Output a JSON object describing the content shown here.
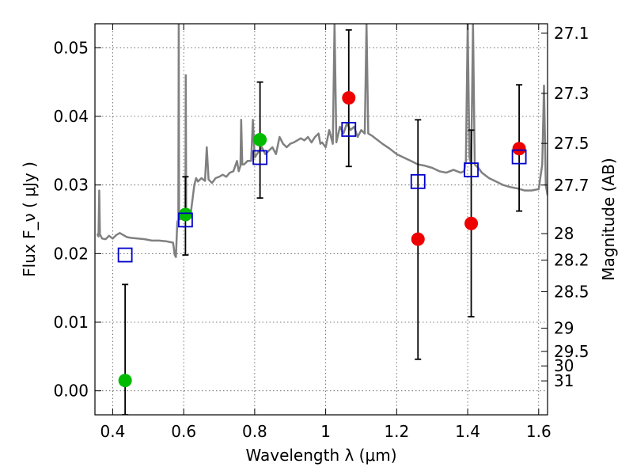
{
  "chart_data": {
    "type": "scatter",
    "xlabel": "Wavelength  λ (μm)",
    "ylabel_left": "Flux  F_ν  ( μJy )",
    "ylabel_right": "Magnitude (AB)",
    "xlim": [
      0.35,
      1.625
    ],
    "ylim": [
      -0.0035,
      0.0535
    ],
    "grid": true,
    "x_ticks": [
      0.4,
      0.6,
      0.8,
      1.0,
      1.2,
      1.4,
      1.6
    ],
    "x_tick_labels": [
      "0.4",
      "0.6",
      "0.8",
      "1",
      "1.2",
      "1.4",
      "1.6"
    ],
    "y_ticks": [
      0.0,
      0.01,
      0.02,
      0.03,
      0.04,
      0.05
    ],
    "y_tick_labels": [
      "0.00",
      "0.01",
      "0.02",
      "0.03",
      "0.04",
      "0.05"
    ],
    "right_ticks": [
      {
        "label": "27.1",
        "flux": 0.05212
      },
      {
        "label": "27.3",
        "flux": 0.04335
      },
      {
        "label": "27.5",
        "flux": 0.03606
      },
      {
        "label": "27.7",
        "flux": 0.02999
      },
      {
        "label": "28",
        "flux": 0.02291
      },
      {
        "label": "28.2",
        "flux": 0.01905
      },
      {
        "label": "28.5",
        "flux": 0.01445
      },
      {
        "label": "29",
        "flux": 0.00912
      },
      {
        "label": "29.5",
        "flux": 0.00575
      },
      {
        "label": "30",
        "flux": 0.00363
      },
      {
        "label": "31",
        "flux": 0.00145
      }
    ],
    "colors": {
      "spectrum": "#808080",
      "green_points": "#00bb00",
      "red_points": "#ee0000",
      "model_squares": "#0000cc",
      "errorbars": "#000000"
    },
    "series": [
      {
        "kind": "line",
        "points": [
          [
            0.355,
            0.0228
          ],
          [
            0.357,
            0.0228
          ],
          [
            0.36,
            0.0225
          ],
          [
            0.362,
            0.0292
          ],
          [
            0.364,
            0.0228
          ],
          [
            0.37,
            0.0222
          ],
          [
            0.38,
            0.0221
          ],
          [
            0.39,
            0.0226
          ],
          [
            0.4,
            0.0222
          ],
          [
            0.41,
            0.0227
          ],
          [
            0.42,
            0.023
          ],
          [
            0.43,
            0.0227
          ],
          [
            0.44,
            0.0224
          ],
          [
            0.45,
            0.0223
          ],
          [
            0.47,
            0.0222
          ],
          [
            0.49,
            0.0221
          ],
          [
            0.51,
            0.0219
          ],
          [
            0.53,
            0.0219
          ],
          [
            0.55,
            0.0218
          ],
          [
            0.57,
            0.0216
          ],
          [
            0.575,
            0.0198
          ],
          [
            0.578,
            0.0195
          ],
          [
            0.582,
            0.0246
          ],
          [
            0.585,
            0.025
          ],
          [
            0.586,
            0.0535
          ],
          [
            0.587,
            0.025
          ],
          [
            0.59,
            0.025
          ],
          [
            0.6,
            0.0254
          ],
          [
            0.605,
            0.0255
          ],
          [
            0.606,
            0.046
          ],
          [
            0.607,
            0.0258
          ],
          [
            0.61,
            0.026
          ],
          [
            0.62,
            0.0259
          ],
          [
            0.63,
            0.03
          ],
          [
            0.635,
            0.031
          ],
          [
            0.64,
            0.0305
          ],
          [
            0.65,
            0.031
          ],
          [
            0.66,
            0.0306
          ],
          [
            0.665,
            0.0355
          ],
          [
            0.67,
            0.0308
          ],
          [
            0.68,
            0.0303
          ],
          [
            0.69,
            0.031
          ],
          [
            0.7,
            0.0312
          ],
          [
            0.71,
            0.0315
          ],
          [
            0.72,
            0.0312
          ],
          [
            0.73,
            0.0318
          ],
          [
            0.74,
            0.032
          ],
          [
            0.75,
            0.0335
          ],
          [
            0.755,
            0.032
          ],
          [
            0.76,
            0.0328
          ],
          [
            0.762,
            0.0395
          ],
          [
            0.765,
            0.033
          ],
          [
            0.77,
            0.033
          ],
          [
            0.78,
            0.0335
          ],
          [
            0.79,
            0.0335
          ],
          [
            0.795,
            0.0395
          ],
          [
            0.8,
            0.034
          ],
          [
            0.81,
            0.0348
          ],
          [
            0.82,
            0.0355
          ],
          [
            0.83,
            0.0345
          ],
          [
            0.84,
            0.035
          ],
          [
            0.85,
            0.0355
          ],
          [
            0.86,
            0.0345
          ],
          [
            0.87,
            0.037
          ],
          [
            0.88,
            0.036
          ],
          [
            0.89,
            0.0355
          ],
          [
            0.9,
            0.036
          ],
          [
            0.91,
            0.0362
          ],
          [
            0.92,
            0.0365
          ],
          [
            0.93,
            0.0368
          ],
          [
            0.94,
            0.0365
          ],
          [
            0.95,
            0.037
          ],
          [
            0.96,
            0.0362
          ],
          [
            0.97,
            0.037
          ],
          [
            0.98,
            0.0375
          ],
          [
            0.985,
            0.036
          ],
          [
            0.99,
            0.0362
          ],
          [
            1.0,
            0.0355
          ],
          [
            1.01,
            0.038
          ],
          [
            1.02,
            0.036
          ],
          [
            1.025,
            0.0535
          ],
          [
            1.03,
            0.0362
          ],
          [
            1.04,
            0.0385
          ],
          [
            1.05,
            0.0375
          ],
          [
            1.06,
            0.039
          ],
          [
            1.07,
            0.038
          ],
          [
            1.08,
            0.0385
          ],
          [
            1.09,
            0.037
          ],
          [
            1.1,
            0.038
          ],
          [
            1.11,
            0.0375
          ],
          [
            1.115,
            0.0535
          ],
          [
            1.12,
            0.0375
          ],
          [
            1.13,
            0.0372
          ],
          [
            1.14,
            0.0368
          ],
          [
            1.16,
            0.036
          ],
          [
            1.18,
            0.0353
          ],
          [
            1.2,
            0.0345
          ],
          [
            1.22,
            0.034
          ],
          [
            1.24,
            0.0335
          ],
          [
            1.26,
            0.033
          ],
          [
            1.28,
            0.0328
          ],
          [
            1.3,
            0.0325
          ],
          [
            1.32,
            0.032
          ],
          [
            1.34,
            0.0318
          ],
          [
            1.36,
            0.0322
          ],
          [
            1.38,
            0.0318
          ],
          [
            1.39,
            0.032
          ],
          [
            1.395,
            0.0335
          ],
          [
            1.4,
            0.0535
          ],
          [
            1.405,
            0.034
          ],
          [
            1.41,
            0.033
          ],
          [
            1.415,
            0.0535
          ],
          [
            1.42,
            0.033
          ],
          [
            1.43,
            0.0325
          ],
          [
            1.44,
            0.0318
          ],
          [
            1.46,
            0.031
          ],
          [
            1.48,
            0.0305
          ],
          [
            1.5,
            0.03
          ],
          [
            1.52,
            0.0297
          ],
          [
            1.54,
            0.0295
          ],
          [
            1.56,
            0.0292
          ],
          [
            1.58,
            0.0292
          ],
          [
            1.6,
            0.0294
          ],
          [
            1.61,
            0.033
          ],
          [
            1.615,
            0.0445
          ],
          [
            1.62,
            0.03
          ],
          [
            1.625,
            0.0285
          ]
        ]
      },
      {
        "kind": "errorbars",
        "points": [
          {
            "x": 0.435,
            "low": -0.0035,
            "high": 0.0155
          },
          {
            "x": 0.605,
            "low": 0.0198,
            "high": 0.0312
          },
          {
            "x": 0.815,
            "low": 0.0281,
            "high": 0.045
          },
          {
            "x": 1.065,
            "low": 0.0327,
            "high": 0.0526
          },
          {
            "x": 1.26,
            "low": 0.0046,
            "high": 0.0395
          },
          {
            "x": 1.41,
            "low": 0.0108,
            "high": 0.038
          },
          {
            "x": 1.545,
            "low": 0.0262,
            "high": 0.0446
          }
        ]
      },
      {
        "kind": "circles-green",
        "points": [
          [
            0.435,
            0.0015
          ],
          [
            0.605,
            0.0257
          ],
          [
            0.815,
            0.0366
          ]
        ]
      },
      {
        "kind": "circles-red",
        "points": [
          [
            1.065,
            0.0427
          ],
          [
            1.26,
            0.0221
          ],
          [
            1.41,
            0.0244
          ],
          [
            1.545,
            0.0353
          ]
        ]
      },
      {
        "kind": "squares",
        "points": [
          [
            0.435,
            0.0198
          ],
          [
            0.605,
            0.0249
          ],
          [
            0.815,
            0.034
          ],
          [
            1.065,
            0.0381
          ],
          [
            1.26,
            0.0305
          ],
          [
            1.41,
            0.0322
          ],
          [
            1.545,
            0.0341
          ]
        ]
      }
    ]
  }
}
